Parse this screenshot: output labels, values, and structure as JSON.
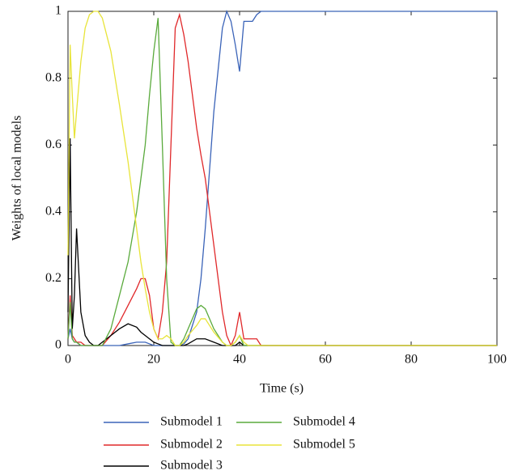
{
  "chart_data": {
    "type": "line",
    "x": [
      0,
      0.5,
      1,
      1.5,
      2,
      3,
      4,
      5,
      6,
      7,
      8,
      10,
      12,
      14,
      16,
      17,
      18,
      19,
      20,
      21,
      22,
      23,
      24,
      25,
      26,
      27,
      28,
      30,
      31,
      32,
      34,
      36,
      37,
      38,
      39,
      40,
      41,
      42,
      43,
      44,
      45,
      50,
      60,
      70,
      80,
      90,
      100
    ],
    "xlabel": "Time (s)",
    "ylabel": "Weights of local models",
    "xlim": [
      0,
      100
    ],
    "xticks": [
      0,
      20,
      40,
      60,
      80,
      100
    ],
    "ylim": [
      0,
      1
    ],
    "yticks": [
      0,
      0.2,
      0.4,
      0.6,
      0.8,
      1
    ],
    "series": [
      {
        "name": "Submodel 1",
        "color": "#3a63b8",
        "values": [
          0.02,
          0.05,
          0.02,
          0.01,
          0.01,
          0,
          0,
          0,
          0,
          0,
          0,
          0,
          0,
          0.005,
          0.01,
          0.01,
          0.01,
          0.005,
          0,
          0,
          0,
          0,
          0,
          0,
          0,
          0.005,
          0.02,
          0.1,
          0.2,
          0.35,
          0.7,
          0.95,
          1,
          0.97,
          0.9,
          0.82,
          0.97,
          0.97,
          0.97,
          0.99,
          1,
          1,
          1,
          1,
          1,
          1,
          1
        ]
      },
      {
        "name": "Submodel 2",
        "color": "#e0282a",
        "values": [
          0.02,
          0.15,
          0.03,
          0.02,
          0.01,
          0.01,
          0,
          0,
          0,
          0,
          0,
          0.03,
          0.07,
          0.12,
          0.17,
          0.2,
          0.2,
          0.15,
          0.05,
          0.02,
          0.1,
          0.25,
          0.6,
          0.95,
          0.99,
          0.93,
          0.85,
          0.65,
          0.57,
          0.5,
          0.3,
          0.1,
          0.03,
          0,
          0.03,
          0.1,
          0.02,
          0.02,
          0.02,
          0.02,
          0,
          0,
          0,
          0,
          0,
          0,
          0
        ]
      },
      {
        "name": "Submodel 3",
        "color": "#000000",
        "values": [
          0.1,
          0.62,
          0.05,
          0.15,
          0.35,
          0.1,
          0.03,
          0.01,
          0,
          0,
          0.01,
          0.03,
          0.05,
          0.065,
          0.055,
          0.04,
          0.03,
          0.02,
          0.01,
          0.005,
          0,
          0,
          0,
          0,
          0,
          0,
          0.005,
          0.02,
          0.02,
          0.02,
          0.01,
          0,
          0,
          0,
          0,
          0.01,
          0,
          0,
          0,
          0,
          0,
          0,
          0,
          0,
          0,
          0,
          0
        ]
      },
      {
        "name": "Submodel 4",
        "color": "#5aaa3c",
        "values": [
          0.02,
          0.13,
          0.02,
          0.01,
          0.01,
          0,
          0,
          0,
          0,
          0,
          0,
          0.05,
          0.15,
          0.25,
          0.4,
          0.5,
          0.6,
          0.75,
          0.88,
          0.98,
          0.6,
          0.2,
          0.01,
          0,
          0,
          0.02,
          0.05,
          0.11,
          0.12,
          0.11,
          0.05,
          0.01,
          0,
          0,
          0.01,
          0.03,
          0,
          0,
          0,
          0,
          0,
          0,
          0,
          0,
          0,
          0,
          0
        ]
      },
      {
        "name": "Submodel 5",
        "color": "#e8e43a",
        "values": [
          0.27,
          0.9,
          0.75,
          0.62,
          0.7,
          0.85,
          0.95,
          0.99,
          1,
          1,
          0.98,
          0.88,
          0.72,
          0.55,
          0.35,
          0.25,
          0.17,
          0.1,
          0.05,
          0.02,
          0.02,
          0.03,
          0.02,
          0,
          0,
          0.01,
          0.03,
          0.06,
          0.08,
          0.08,
          0.04,
          0.01,
          0,
          0,
          0.01,
          0.03,
          0.01,
          0,
          0,
          0,
          0,
          0,
          0,
          0,
          0,
          0,
          0
        ]
      }
    ]
  }
}
